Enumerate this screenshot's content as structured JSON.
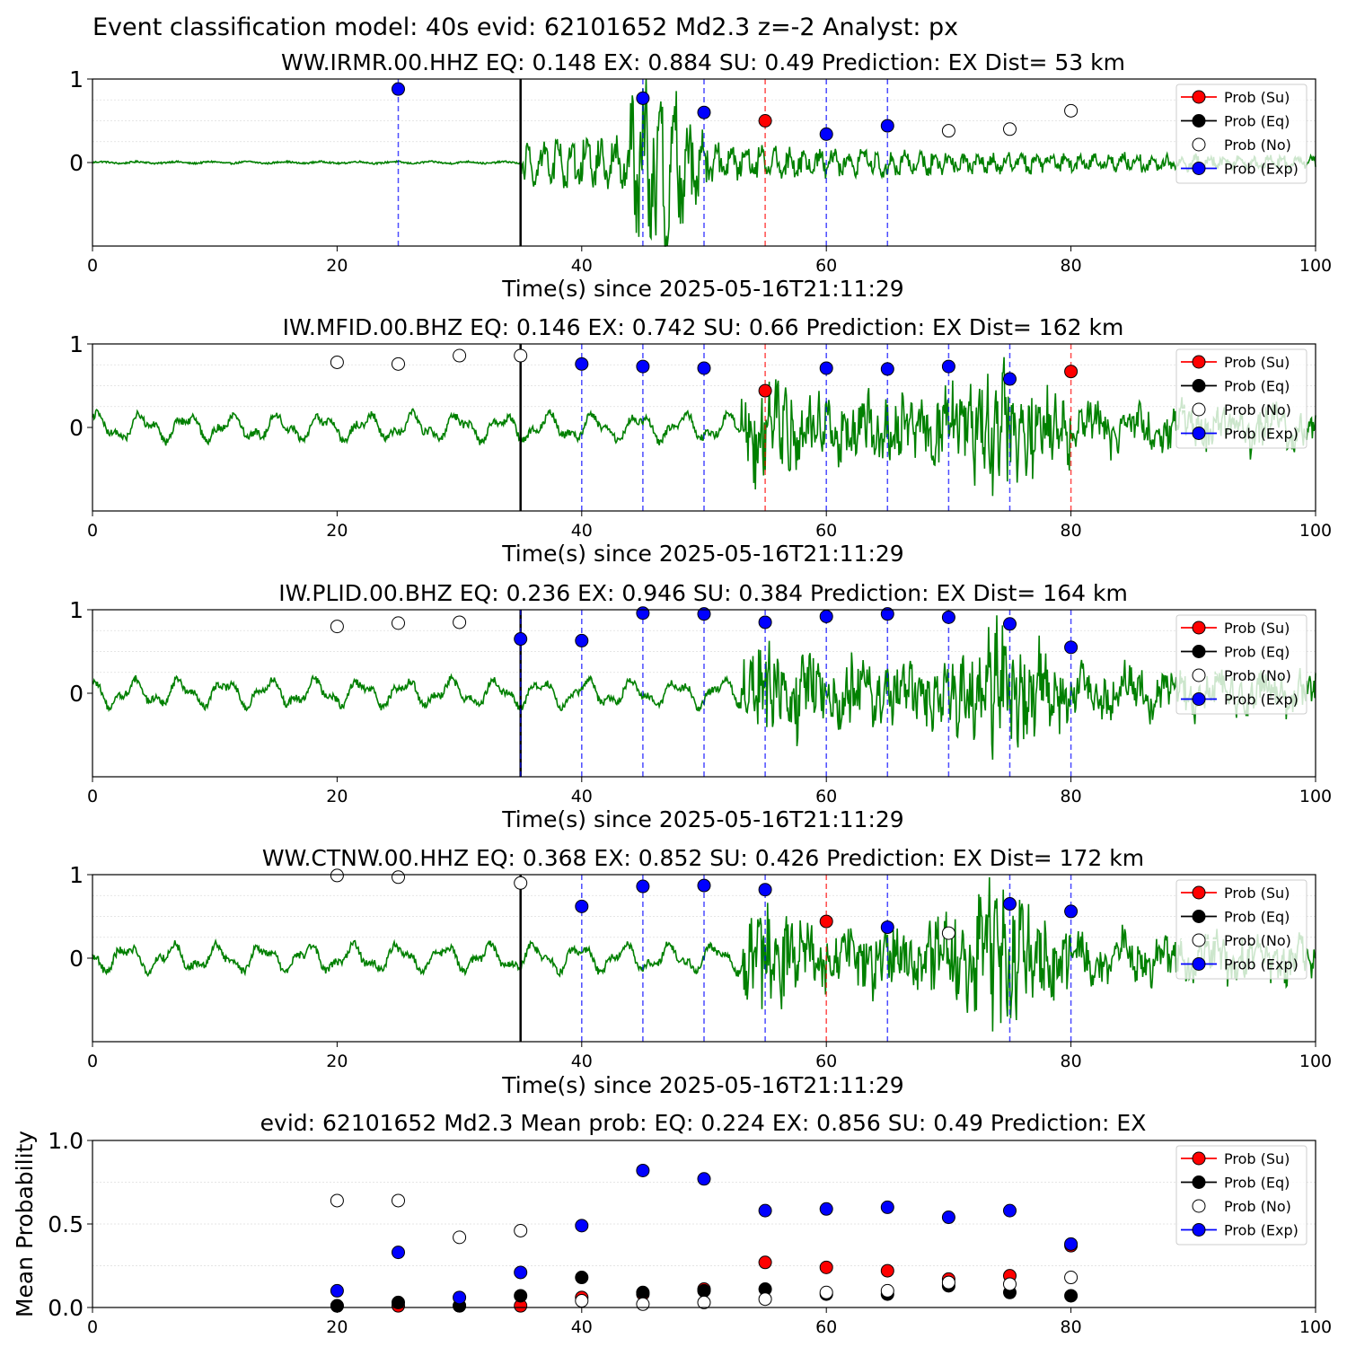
{
  "figure": {
    "title": "Event classification model: 40s evid: 62101652 Md2.3 z=-2 Analyst: px"
  },
  "colors": {
    "su": "#ff0000",
    "eq": "#000000",
    "no": "#ffffff",
    "exp": "#0000ff",
    "trace": "#008000",
    "pick": "#000000",
    "grid": "#dddddd"
  },
  "legend": [
    {
      "key": "su",
      "label": "Prob (Su)"
    },
    {
      "key": "eq",
      "label": "Prob (Eq)"
    },
    {
      "key": "no",
      "label": "Prob (No)"
    },
    {
      "key": "exp",
      "label": "Prob (Exp)"
    }
  ],
  "chart_data": [
    {
      "type": "scatter",
      "title": "WW.IRMR.00.HHZ   EQ: 0.148  EX: 0.884  SU: 0.49   Prediction: EX    Dist= 53 km",
      "xlabel": "Time(s) since 2025-05-16T21:11:29",
      "ylabel": "",
      "xlim": [
        0,
        100
      ],
      "ylim": [
        -1,
        1
      ],
      "xticks": [
        "0",
        "20",
        "40",
        "60",
        "80",
        "100"
      ],
      "yticks": [
        "1",
        "0"
      ],
      "pick_time": 35,
      "trace_amp": 0.9,
      "points": [
        {
          "x": 25,
          "y": 0.88,
          "cls": "exp"
        },
        {
          "x": 45,
          "y": 0.77,
          "cls": "exp"
        },
        {
          "x": 50,
          "y": 0.6,
          "cls": "exp"
        },
        {
          "x": 55,
          "y": 0.5,
          "cls": "su"
        },
        {
          "x": 60,
          "y": 0.34,
          "cls": "exp"
        },
        {
          "x": 65,
          "y": 0.44,
          "cls": "exp"
        },
        {
          "x": 70,
          "y": 0.38,
          "cls": "no"
        },
        {
          "x": 75,
          "y": 0.4,
          "cls": "no"
        },
        {
          "x": 80,
          "y": 0.62,
          "cls": "no"
        }
      ]
    },
    {
      "type": "scatter",
      "title": "IW.MFID.00.BHZ   EQ: 0.146  EX: 0.742  SU: 0.66   Prediction: EX    Dist= 162 km",
      "xlabel": "Time(s) since 2025-05-16T21:11:29",
      "ylabel": "",
      "xlim": [
        0,
        100
      ],
      "ylim": [
        -1,
        1
      ],
      "xticks": [
        "0",
        "20",
        "40",
        "60",
        "80",
        "100"
      ],
      "yticks": [
        "1",
        "0"
      ],
      "pick_time": 35,
      "trace_amp": 0.75,
      "points": [
        {
          "x": 20,
          "y": 0.78,
          "cls": "no"
        },
        {
          "x": 25,
          "y": 0.76,
          "cls": "no"
        },
        {
          "x": 30,
          "y": 0.86,
          "cls": "no"
        },
        {
          "x": 35,
          "y": 0.86,
          "cls": "no"
        },
        {
          "x": 40,
          "y": 0.76,
          "cls": "exp"
        },
        {
          "x": 45,
          "y": 0.73,
          "cls": "exp"
        },
        {
          "x": 50,
          "y": 0.71,
          "cls": "exp"
        },
        {
          "x": 55,
          "y": 0.44,
          "cls": "su"
        },
        {
          "x": 60,
          "y": 0.71,
          "cls": "exp"
        },
        {
          "x": 65,
          "y": 0.7,
          "cls": "exp"
        },
        {
          "x": 70,
          "y": 0.73,
          "cls": "exp"
        },
        {
          "x": 75,
          "y": 0.58,
          "cls": "exp"
        },
        {
          "x": 80,
          "y": 0.67,
          "cls": "su"
        }
      ]
    },
    {
      "type": "scatter",
      "title": "IW.PLID.00.BHZ   EQ: 0.236  EX: 0.946  SU: 0.384   Prediction: EX    Dist= 164 km",
      "xlabel": "Time(s) since 2025-05-16T21:11:29",
      "ylabel": "",
      "xlim": [
        0,
        100
      ],
      "ylim": [
        -1,
        1
      ],
      "xticks": [
        "0",
        "20",
        "40",
        "60",
        "80",
        "100"
      ],
      "yticks": [
        "1",
        "0"
      ],
      "pick_time": 35,
      "trace_amp": 0.75,
      "points": [
        {
          "x": 20,
          "y": 0.8,
          "cls": "no"
        },
        {
          "x": 25,
          "y": 0.84,
          "cls": "no"
        },
        {
          "x": 30,
          "y": 0.85,
          "cls": "no"
        },
        {
          "x": 35,
          "y": 0.65,
          "cls": "exp"
        },
        {
          "x": 40,
          "y": 0.63,
          "cls": "exp"
        },
        {
          "x": 45,
          "y": 0.96,
          "cls": "exp"
        },
        {
          "x": 50,
          "y": 0.95,
          "cls": "exp"
        },
        {
          "x": 55,
          "y": 0.85,
          "cls": "exp"
        },
        {
          "x": 60,
          "y": 0.92,
          "cls": "exp"
        },
        {
          "x": 65,
          "y": 0.95,
          "cls": "exp"
        },
        {
          "x": 70,
          "y": 0.91,
          "cls": "exp"
        },
        {
          "x": 75,
          "y": 0.83,
          "cls": "exp"
        },
        {
          "x": 80,
          "y": 0.55,
          "cls": "exp"
        }
      ]
    },
    {
      "type": "scatter",
      "title": "WW.CTNW.00.HHZ   EQ: 0.368  EX: 0.852  SU: 0.426   Prediction: EX    Dist= 172 km",
      "xlabel": "Time(s) since 2025-05-16T21:11:29",
      "ylabel": "",
      "xlim": [
        0,
        100
      ],
      "ylim": [
        -1,
        1
      ],
      "xticks": [
        "0",
        "20",
        "40",
        "60",
        "80",
        "100"
      ],
      "yticks": [
        "1",
        "0"
      ],
      "pick_time": 35,
      "trace_amp": 0.75,
      "points": [
        {
          "x": 20,
          "y": 0.99,
          "cls": "no"
        },
        {
          "x": 25,
          "y": 0.97,
          "cls": "no"
        },
        {
          "x": 35,
          "y": 0.9,
          "cls": "no"
        },
        {
          "x": 40,
          "y": 0.62,
          "cls": "exp"
        },
        {
          "x": 45,
          "y": 0.86,
          "cls": "exp"
        },
        {
          "x": 50,
          "y": 0.87,
          "cls": "exp"
        },
        {
          "x": 55,
          "y": 0.82,
          "cls": "exp"
        },
        {
          "x": 60,
          "y": 0.44,
          "cls": "su"
        },
        {
          "x": 65,
          "y": 0.37,
          "cls": "exp"
        },
        {
          "x": 70,
          "y": 0.3,
          "cls": "no"
        },
        {
          "x": 75,
          "y": 0.65,
          "cls": "exp"
        },
        {
          "x": 80,
          "y": 0.56,
          "cls": "exp"
        }
      ]
    },
    {
      "type": "scatter",
      "title": "evid: 62101652  Md2.3   Mean prob:   EQ: 0.224  EX: 0.856  SU: 0.49   Prediction: EX",
      "xlabel": "",
      "ylabel": "Mean Probability",
      "xlim": [
        0,
        100
      ],
      "ylim": [
        0,
        1
      ],
      "xticks": [
        "0",
        "20",
        "40",
        "60",
        "80",
        "100"
      ],
      "yticks": [
        "1.0",
        "0.5",
        "0.0"
      ],
      "series": [
        {
          "name": "Prob (Su)",
          "cls": "su",
          "x": [
            20,
            25,
            30,
            35,
            40,
            45,
            50,
            55,
            60,
            65,
            70,
            75,
            80
          ],
          "y": [
            0.01,
            0.01,
            0.01,
            0.01,
            0.06,
            0.08,
            0.11,
            0.27,
            0.24,
            0.22,
            0.17,
            0.19,
            0.37
          ]
        },
        {
          "name": "Prob (Eq)",
          "cls": "eq",
          "x": [
            20,
            25,
            30,
            35,
            40,
            45,
            50,
            55,
            60,
            65,
            70,
            75,
            80
          ],
          "y": [
            0.01,
            0.03,
            0.01,
            0.07,
            0.18,
            0.09,
            0.1,
            0.11,
            0.08,
            0.08,
            0.13,
            0.09,
            0.07
          ]
        },
        {
          "name": "Prob (No)",
          "cls": "no",
          "x": [
            20,
            25,
            30,
            35,
            40,
            45,
            50,
            55,
            60,
            65,
            70,
            75,
            80
          ],
          "y": [
            0.64,
            0.64,
            0.42,
            0.46,
            0.04,
            0.02,
            0.03,
            0.05,
            0.09,
            0.1,
            0.15,
            0.14,
            0.18
          ]
        },
        {
          "name": "Prob (Exp)",
          "cls": "exp",
          "x": [
            20,
            25,
            30,
            35,
            40,
            45,
            50,
            55,
            60,
            65,
            70,
            75,
            80
          ],
          "y": [
            0.1,
            0.33,
            0.06,
            0.21,
            0.49,
            0.82,
            0.77,
            0.58,
            0.59,
            0.6,
            0.54,
            0.58,
            0.38
          ]
        }
      ]
    }
  ]
}
